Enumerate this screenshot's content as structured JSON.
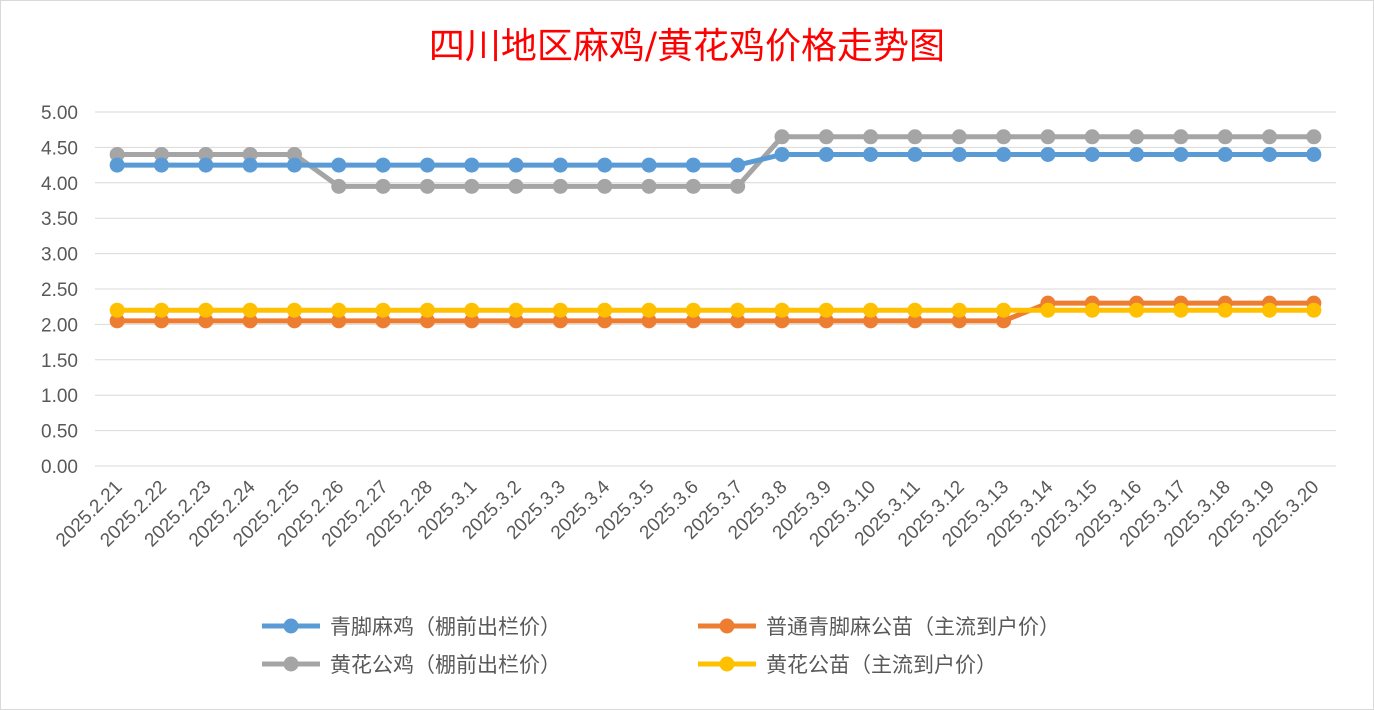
{
  "chart_data": {
    "type": "line",
    "title": "四川地区麻鸡/黄花鸡价格走势图",
    "xlabel": "",
    "ylabel": "",
    "ylim": [
      0,
      5
    ],
    "ytick_labels": [
      "0.00",
      "0.50",
      "1.00",
      "1.50",
      "2.00",
      "2.50",
      "3.00",
      "3.50",
      "4.00",
      "4.50",
      "5.00"
    ],
    "grid": true,
    "legend_position": "bottom",
    "categories": [
      "2025.2.21",
      "2025.2.22",
      "2025.2.23",
      "2025.2.24",
      "2025.2.25",
      "2025.2.26",
      "2025.2.27",
      "2025.2.28",
      "2025.3.1",
      "2025.3.2",
      "2025.3.3",
      "2025.3.4",
      "2025.3.5",
      "2025.3.6",
      "2025.3.7",
      "2025.3.8",
      "2025.3.9",
      "2025.3.10",
      "2025.3.11",
      "2025.3.12",
      "2025.3.13",
      "2025.3.14",
      "2025.3.15",
      "2025.3.16",
      "2025.3.17",
      "2025.3.18",
      "2025.3.19",
      "2025.3.20"
    ],
    "series": [
      {
        "name": "青脚麻鸡（棚前出栏价）",
        "color": "#5b9bd5",
        "values": [
          4.25,
          4.25,
          4.25,
          4.25,
          4.25,
          4.25,
          4.25,
          4.25,
          4.25,
          4.25,
          4.25,
          4.25,
          4.25,
          4.25,
          4.25,
          4.4,
          4.4,
          4.4,
          4.4,
          4.4,
          4.4,
          4.4,
          4.4,
          4.4,
          4.4,
          4.4,
          4.4,
          4.4
        ]
      },
      {
        "name": "普通青脚麻公苗（主流到户价）",
        "color": "#ed7d31",
        "values": [
          2.05,
          2.05,
          2.05,
          2.05,
          2.05,
          2.05,
          2.05,
          2.05,
          2.05,
          2.05,
          2.05,
          2.05,
          2.05,
          2.05,
          2.05,
          2.05,
          2.05,
          2.05,
          2.05,
          2.05,
          2.05,
          2.3,
          2.3,
          2.3,
          2.3,
          2.3,
          2.3,
          2.3
        ]
      },
      {
        "name": "黄花公鸡（棚前出栏价）",
        "color": "#a5a5a5",
        "values": [
          4.4,
          4.4,
          4.4,
          4.4,
          4.4,
          3.95,
          3.95,
          3.95,
          3.95,
          3.95,
          3.95,
          3.95,
          3.95,
          3.95,
          3.95,
          4.65,
          4.65,
          4.65,
          4.65,
          4.65,
          4.65,
          4.65,
          4.65,
          4.65,
          4.65,
          4.65,
          4.65,
          4.65
        ]
      },
      {
        "name": "黄花公苗（主流到户价）",
        "color": "#ffc000",
        "values": [
          2.2,
          2.2,
          2.2,
          2.2,
          2.2,
          2.2,
          2.2,
          2.2,
          2.2,
          2.2,
          2.2,
          2.2,
          2.2,
          2.2,
          2.2,
          2.2,
          2.2,
          2.2,
          2.2,
          2.2,
          2.2,
          2.2,
          2.2,
          2.2,
          2.2,
          2.2,
          2.2,
          2.2
        ]
      }
    ],
    "draw_order": [
      2,
      0,
      1,
      3
    ]
  }
}
